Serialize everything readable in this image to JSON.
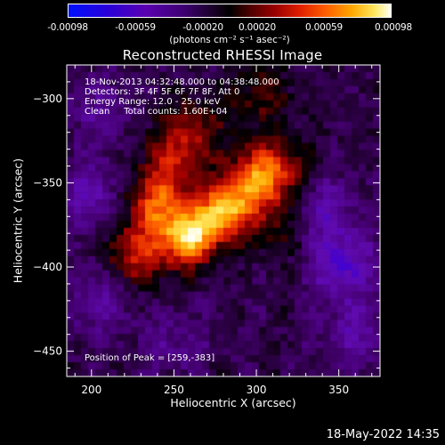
{
  "chart_data": {
    "type": "heatmap",
    "title": "Reconstructed RHESSI Image",
    "xlabel": "Heliocentric X (arcsec)",
    "ylabel": "Heliocentric Y (arcsec)",
    "xlim": [
      185,
      375
    ],
    "ylim": [
      -465,
      -280
    ],
    "x_ticks": [
      "200",
      "250",
      "300",
      "350"
    ],
    "y_ticks": [
      "-300",
      "-350",
      "-400",
      "-450"
    ],
    "colorbar": {
      "ticks": [
        "-0.00098",
        "-0.00059",
        "-0.00020",
        "0.00020",
        "0.00059",
        "0.00098"
      ],
      "range": [
        -0.00098,
        0.00098
      ],
      "unit_label": "(photons cm⁻² s⁻¹ asec⁻²)"
    },
    "info_lines": [
      "18-Nov-2013 04:32:48.000 to 04:38:48.000",
      "Detectors: 3F 4F 5F 6F 7F 8F, Att 0",
      "Energy Range: 12.0 - 25.0 keV",
      "Clean     Total counts: 1.60E+04"
    ],
    "peak_label": "Position of Peak = [259,-383]",
    "peak": [
      259,
      -383
    ],
    "emission_ridge": [
      {
        "x": 259,
        "y": -383,
        "intensity": 0.98
      },
      {
        "x": 279,
        "y": -368,
        "intensity": 0.85
      },
      {
        "x": 241,
        "y": -362,
        "intensity": 0.7
      },
      {
        "x": 297,
        "y": -352,
        "intensity": 0.62
      },
      {
        "x": 311,
        "y": -342,
        "intensity": 0.5
      },
      {
        "x": 228,
        "y": -392,
        "intensity": 0.55
      },
      {
        "x": 250,
        "y": -334,
        "intensity": 0.4
      },
      {
        "x": 262,
        "y": -317,
        "intensity": 0.3
      },
      {
        "x": 302,
        "y": -297,
        "intensity": 0.28
      },
      {
        "x": 314,
        "y": -378,
        "intensity": 0.22
      }
    ],
    "negative_regions": [
      {
        "x": 352,
        "y": -399,
        "intensity": -0.45
      },
      {
        "x": 200,
        "y": -357,
        "intensity": -0.32
      },
      {
        "x": 340,
        "y": -367,
        "intensity": -0.3
      },
      {
        "x": 205,
        "y": -420,
        "intensity": -0.25
      },
      {
        "x": 360,
        "y": -440,
        "intensity": -0.28
      },
      {
        "x": 205,
        "y": -305,
        "intensity": -0.22
      },
      {
        "x": 250,
        "y": -445,
        "intensity": -0.2
      }
    ]
  },
  "timestamp": "18-May-2022 14:35"
}
